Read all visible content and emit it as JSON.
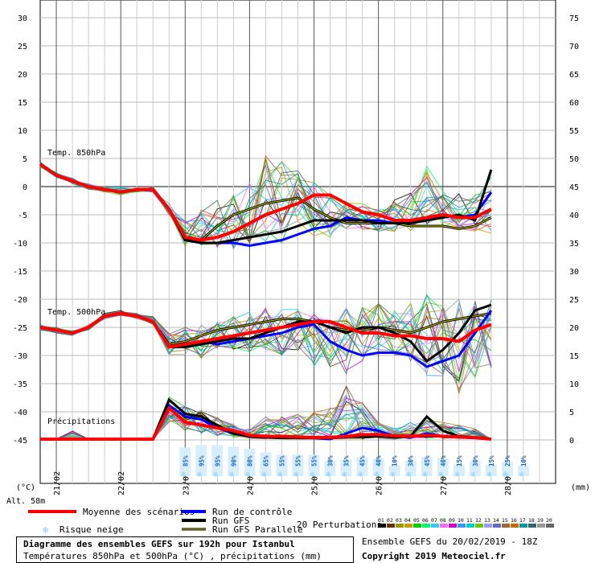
{
  "title": "Diagramme des ensembles GEFS sur 192h pour Istanbul",
  "subtitle": "Températures 850hPa et 500hPa (°C) , précipitations (mm)",
  "ensemble_info": "Ensemble GEFS du 20/02/2019 - 18Z",
  "copyright": "Copyright 2019 Meteociel.fr",
  "unit_left": "(°C)",
  "unit_right": "(mm)",
  "altitude": "Alt. 58m",
  "section_labels": {
    "t850": "Temp. 850hPa",
    "t500": "Temp. 500hPa",
    "precip": "Précipitations"
  },
  "legend": {
    "mean": "Moyenne des scénarios",
    "control": "Run de contrôle",
    "gfs": "Run GFS",
    "gfs_parallel": "Run GFS Parallele",
    "snow_risk": "Risque neige",
    "perturbations": "20 Perturbations"
  },
  "perturbation_labels": [
    "01",
    "02",
    "03",
    "04",
    "05",
    "06",
    "07",
    "08",
    "09",
    "10",
    "11",
    "12",
    "13",
    "14",
    "15",
    "16",
    "17",
    "18",
    "19",
    "20"
  ],
  "colors": {
    "mean": "#ff0000",
    "control": "#0000ff",
    "gfs": "#000000",
    "gfs_parallel_outer": "#000000",
    "gfs_parallel_inner": "#cccc00",
    "snow": "#87cefa",
    "perturbations": [
      "#000000",
      "#663300",
      "#999900",
      "#cc9900",
      "#00cc00",
      "#00ff66",
      "#33ccff",
      "#ff66ff",
      "#cc00cc",
      "#3399ff",
      "#00cccc",
      "#66cc00",
      "#9999ff",
      "#6666cc",
      "#996633",
      "#cc6600",
      "#009999",
      "#336666",
      "#999999",
      "#666666"
    ]
  },
  "chart_data": {
    "type": "line",
    "x_ticks": [
      "21/02",
      "22/02",
      "23/02",
      "24/02",
      "25/02",
      "26/02",
      "27/02",
      "28/02"
    ],
    "y_left_ticks": [
      30,
      25,
      20,
      15,
      10,
      5,
      0,
      -5,
      -10,
      -15,
      -20,
      -25,
      -30,
      -35,
      -40,
      -45
    ],
    "y_right_ticks": [
      75,
      70,
      65,
      60,
      55,
      50,
      45,
      40,
      35,
      30,
      25,
      20,
      15,
      10,
      5,
      0
    ],
    "time_step_hours": 6,
    "t850": {
      "mean": [
        4,
        2,
        1,
        0,
        -0.5,
        -1,
        -0.5,
        -0.5,
        -4,
        -9,
        -9.5,
        -9,
        -8,
        -6.5,
        -5,
        -4,
        -3,
        -1.5,
        -1.5,
        -3,
        -4.5,
        -5,
        -6,
        -6,
        -5.5,
        -5,
        -5.5,
        -5.5,
        -4
      ],
      "control": [
        4,
        2,
        1,
        0,
        -0.5,
        -1,
        -0.5,
        -0.5,
        -4,
        -9.5,
        -10,
        -10,
        -10,
        -10.5,
        -10,
        -9.5,
        -8.5,
        -7.5,
        -7,
        -5.5,
        -6,
        -6,
        -6.5,
        -6,
        -6,
        -5,
        -5.5,
        -5,
        -1
      ],
      "gfs": [
        4,
        2,
        1,
        0,
        -0.5,
        -1,
        -0.5,
        -0.5,
        -4,
        -9.5,
        -10,
        -10,
        -9.5,
        -9,
        -8.5,
        -8,
        -7,
        -6,
        -6,
        -6,
        -6,
        -6.5,
        -6.5,
        -6.5,
        -6,
        -5.5,
        -5,
        -6,
        3
      ],
      "gfs_parallel": [
        4,
        2,
        1,
        0,
        -0.5,
        -1,
        -0.5,
        -0.5,
        -4,
        -9.5,
        -9.5,
        -7,
        -5,
        -4,
        -3,
        -2.5,
        -2,
        -4,
        -5.5,
        -6.5,
        -6.5,
        -6.5,
        -6.5,
        -7,
        -7,
        -7,
        -7.5,
        -7,
        -5.5
      ],
      "spread_max": [
        4.5,
        2.5,
        1.5,
        0.5,
        0,
        0,
        0,
        0,
        -3,
        -5,
        -4,
        -2,
        1,
        3,
        6,
        5,
        3,
        1,
        -1,
        -2,
        -3,
        -4,
        -2,
        -1,
        4,
        0,
        -1,
        -1,
        2
      ],
      "spread_min": [
        3.5,
        1.5,
        0.5,
        -0.5,
        -1,
        -1.5,
        -1,
        -1,
        -5,
        -10.5,
        -11,
        -11,
        -11,
        -11,
        -10.5,
        -10,
        -9.5,
        -9,
        -9,
        -8,
        -8,
        -8,
        -8,
        -8,
        -8,
        -7.5,
        -7.5,
        -8,
        -8.5
      ]
    },
    "t500": {
      "mean": [
        -25,
        -25.5,
        -26,
        -25,
        -23,
        -22.5,
        -23,
        -24,
        -28.5,
        -28,
        -27.5,
        -27,
        -26.5,
        -26,
        -25.5,
        -25,
        -24.5,
        -24,
        -24,
        -25,
        -26,
        -26,
        -26.5,
        -26.5,
        -27,
        -27,
        -27.5,
        -25.5,
        -24.5
      ],
      "control": [
        -25,
        -25.5,
        -26,
        -25,
        -23,
        -22.5,
        -23,
        -24,
        -28.5,
        -28,
        -27.5,
        -28,
        -27.5,
        -27,
        -26.5,
        -26,
        -25,
        -24.5,
        -27.5,
        -29,
        -30,
        -29.5,
        -29.5,
        -30,
        -32,
        -31,
        -30,
        -26,
        -22
      ],
      "gfs": [
        -25,
        -25.5,
        -26,
        -25,
        -23,
        -22.5,
        -23,
        -24,
        -28.5,
        -28.5,
        -28,
        -27.5,
        -27,
        -27,
        -26,
        -25,
        -24,
        -24,
        -25,
        -26,
        -25,
        -25,
        -26,
        -27.5,
        -31,
        -29,
        -26,
        -22,
        -21
      ],
      "gfs_parallel": [
        -25,
        -25.5,
        -26,
        -25,
        -23,
        -22.5,
        -23,
        -24,
        -28,
        -27.5,
        -26.5,
        -25.5,
        -25,
        -24.5,
        -24,
        -23.5,
        -23.5,
        -24,
        -25,
        -25.5,
        -25.5,
        -25,
        -25.5,
        -26,
        -25,
        -24,
        -23.5,
        -23,
        -22.5
      ],
      "spread_max": [
        -24.5,
        -25,
        -25.5,
        -24.5,
        -22.5,
        -22,
        -22.5,
        -23,
        -26,
        -25,
        -24.5,
        -24,
        -23,
        -22,
        -21.5,
        -21,
        -21.5,
        -22,
        -22,
        -21.5,
        -21,
        -20.5,
        -22,
        -20,
        -19,
        -21,
        -19.5,
        -20,
        -19
      ],
      "spread_min": [
        -25.5,
        -26,
        -26.5,
        -25.5,
        -23.5,
        -23,
        -23.5,
        -24.5,
        -30,
        -30,
        -30.5,
        -30,
        -29.5,
        -29.5,
        -29.5,
        -30,
        -30,
        -32,
        -32,
        -33.5,
        -31,
        -30,
        -30.5,
        -31,
        -34,
        -34,
        -37,
        -34,
        -33
      ]
    },
    "precip": {
      "mean": [
        0,
        0,
        0,
        0,
        0,
        0,
        0,
        0,
        5.5,
        3,
        2.5,
        2,
        1.5,
        0.7,
        0.5,
        0.5,
        0.4,
        0.3,
        0.3,
        0.5,
        0.8,
        0.8,
        0.6,
        0.5,
        0.7,
        0.5,
        0.4,
        0.3,
        0
      ],
      "control": [
        0,
        0,
        0,
        0,
        0,
        0,
        0,
        0,
        6,
        4,
        3.5,
        2,
        1,
        0.5,
        0.3,
        0.3,
        0.2,
        0.2,
        0,
        1,
        2,
        1.5,
        0.5,
        0.3,
        1,
        0.5,
        0.3,
        0.2,
        0
      ],
      "gfs": [
        0,
        0,
        0,
        0,
        0,
        0,
        0,
        0,
        7,
        4.5,
        4,
        2.5,
        1,
        0.5,
        0.3,
        0.2,
        0.2,
        0.2,
        0.2,
        0.5,
        0.5,
        0.5,
        0.3,
        0.5,
        4,
        1.5,
        0.5,
        0.3,
        0
      ],
      "gfs_parallel": [
        0,
        0,
        0,
        0,
        0,
        0,
        0,
        0,
        6,
        3.5,
        4.5,
        2,
        1.5,
        0.5,
        0.5,
        0.5,
        0.3,
        0.3,
        0.2,
        0.3,
        0.3,
        0.5,
        0.5,
        0.5,
        0.5,
        0.5,
        0.5,
        0.3,
        0
      ],
      "spread_max": [
        0,
        0,
        1.5,
        0,
        0,
        0,
        0,
        0,
        7.5,
        6,
        6,
        4,
        3,
        2,
        4,
        4,
        5,
        5,
        6,
        10,
        7,
        3,
        2,
        3,
        4,
        3,
        3,
        2,
        0
      ],
      "spread_min": [
        0,
        0,
        0,
        0,
        0,
        0,
        0,
        0,
        3,
        1.5,
        1,
        0.5,
        0.2,
        0,
        0,
        0,
        0,
        0,
        0,
        0,
        0,
        0,
        0,
        0,
        0,
        0,
        0,
        0,
        0
      ]
    },
    "snow_risk_percent": [
      "85%",
      "95%",
      "95%",
      "90%",
      "80%",
      "65%",
      "55%",
      "55%",
      "55%",
      "30%",
      "35%",
      "45%",
      "40%",
      "10%",
      "30%",
      "45%",
      "40%",
      "15%",
      "30%",
      "15%",
      "25%",
      "10%"
    ],
    "ylabel_left": "(°C)",
    "ylabel_right": "(mm)"
  }
}
